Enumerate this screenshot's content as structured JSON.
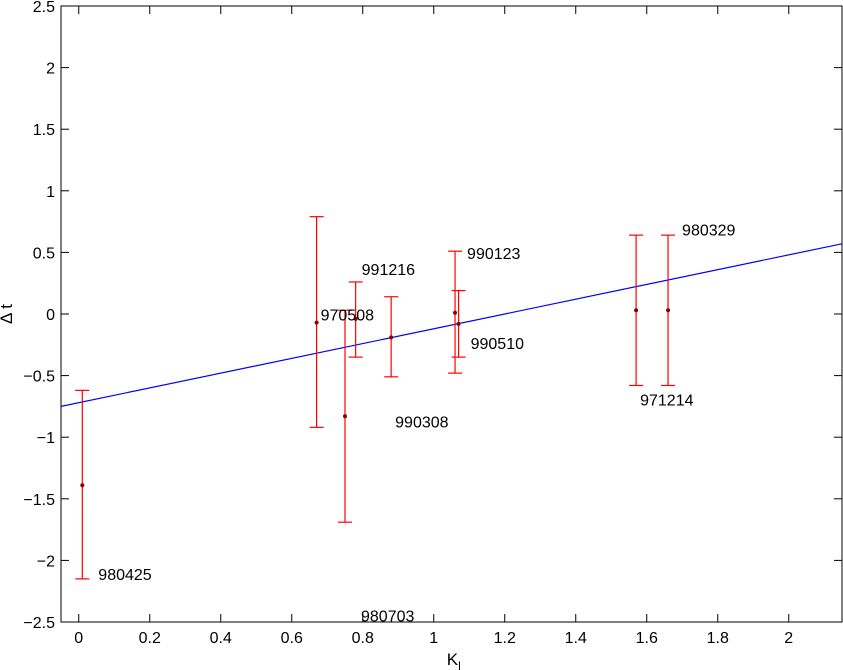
{
  "chart_data": {
    "type": "scatter",
    "title": "",
    "xlabel": "K",
    "xlabel_sub": "l",
    "ylabel": "Δ t",
    "xlim": [
      -0.05,
      2.15
    ],
    "ylim": [
      -2.5,
      2.5
    ],
    "xticks": [
      0,
      0.2,
      0.4,
      0.6,
      0.8,
      1,
      1.2,
      1.4,
      1.6,
      1.8,
      2
    ],
    "xtick_labels": [
      "0",
      "0.2",
      "0.4",
      "0.6",
      "0.8",
      "1",
      "1.2",
      "1.4",
      "1.6",
      "1.8",
      "2"
    ],
    "yticks": [
      -2.5,
      -2,
      -1.5,
      -1,
      -0.5,
      0,
      0.5,
      1,
      1.5,
      2,
      2.5
    ],
    "ytick_labels": [
      "−2.5",
      "−2",
      "−1.5",
      "−1",
      "−0.5",
      "0",
      "0.5",
      "1",
      "1.5",
      "2",
      "2.5"
    ],
    "grid": false,
    "colors": {
      "errorbar": "#ff0000",
      "point": "#8b0000",
      "fit_line": "#0000ff",
      "axis": "#000000"
    },
    "points": [
      {
        "label": "980425",
        "x": 0.01,
        "y": -1.39,
        "lower": -2.15,
        "upper": -0.62
      },
      {
        "label": "970508",
        "x": 0.67,
        "y": -0.07,
        "lower": -0.92,
        "upper": 0.79
      },
      {
        "label": "980703",
        "x": 0.75,
        "y": -0.83,
        "lower": -1.69,
        "upper": 0.03
      },
      {
        "label": "991216",
        "x": 0.78,
        "y": -0.04,
        "lower": -0.35,
        "upper": 0.26
      },
      {
        "label": "990308",
        "x": 0.88,
        "y": -0.19,
        "lower": -0.51,
        "upper": 0.14
      },
      {
        "label": "990123",
        "x": 1.06,
        "y": 0.01,
        "lower": -0.48,
        "upper": 0.51
      },
      {
        "label": "990510",
        "x": 1.07,
        "y": -0.08,
        "lower": -0.35,
        "upper": 0.19
      },
      {
        "label": "971214",
        "x": 1.57,
        "y": 0.03,
        "lower": -0.58,
        "upper": 0.64
      },
      {
        "label": "980329",
        "x": 1.66,
        "y": 0.03,
        "lower": -0.58,
        "upper": 0.64
      }
    ],
    "fit_line": {
      "x": [
        -0.05,
        2.15
      ],
      "y": [
        -0.75,
        0.57
      ]
    }
  }
}
